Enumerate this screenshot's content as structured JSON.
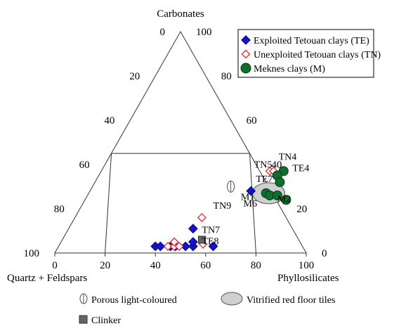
{
  "chart_data": {
    "type": "ternary-scatter",
    "apexes": {
      "top": "Carbonates",
      "left": "Quartz + Feldspars",
      "right": "Phyllosilicates"
    },
    "ticks": {
      "bottom": [
        "0",
        "20",
        "40",
        "60",
        "80",
        "100"
      ],
      "left_edge": [
        "100",
        "80",
        "60",
        "40",
        "20",
        "0"
      ],
      "right_edge": [
        "100",
        "80",
        "60",
        "40",
        "20",
        "0"
      ]
    },
    "region": {
      "carb_max": 45,
      "phyllo_min": 20,
      "phyllo_max": 80
    },
    "legend": [
      {
        "key": "TE",
        "label": "Exploited Tetouan clays (TE)",
        "color": "#1414c8",
        "marker": "diamond"
      },
      {
        "key": "TN",
        "label": "Unexploited Tetouan clays (TN)",
        "color": "#e02828",
        "marker": "open-diamond"
      },
      {
        "key": "M",
        "label": "Meknes clays (M)",
        "color": "#0e6e2e",
        "marker": "circle"
      }
    ],
    "series": [
      {
        "key": "TE",
        "points": [
          {
            "carb": 3,
            "phyllo": 38.5
          },
          {
            "carb": 3,
            "phyllo": 40.5
          },
          {
            "carb": 3,
            "phyllo": 44.5
          },
          {
            "carb": 3,
            "phyllo": 46.5
          },
          {
            "carb": 3,
            "phyllo": 50.5
          },
          {
            "carb": 3,
            "phyllo": 53.5
          },
          {
            "carb": 3,
            "phyllo": 61.5
          },
          {
            "carb": 5,
            "phyllo": 52.5
          },
          {
            "carb": 11,
            "phyllo": 49.5
          },
          {
            "carb": 28,
            "phyllo": 64
          }
        ]
      },
      {
        "key": "TN",
        "points": [
          {
            "carb": 3,
            "phyllo": 43.5
          },
          {
            "carb": 3,
            "phyllo": 46
          },
          {
            "carb": 3,
            "phyllo": 48
          },
          {
            "carb": 5,
            "phyllo": 45
          },
          {
            "carb": 4,
            "phyllo": 57
          },
          {
            "carb": 16,
            "phyllo": 50.5
          },
          {
            "carb": 37,
            "phyllo": 67
          },
          {
            "carb": 37,
            "phyllo": 68.5
          }
        ]
      },
      {
        "key": "M",
        "points": [
          {
            "carb": 37,
            "phyllo": 72.5
          },
          {
            "carb": 35,
            "phyllo": 71
          },
          {
            "carb": 32,
            "phyllo": 73.5
          },
          {
            "carb": 27,
            "phyllo": 70.5
          },
          {
            "carb": 26,
            "phyllo": 72.5
          },
          {
            "carb": 26,
            "phyllo": 75.5
          },
          {
            "carb": 24,
            "phyllo": 80
          }
        ]
      }
    ],
    "ellipse": {
      "carb": 27,
      "phyllo": 71.5
    },
    "special": {
      "porous": {
        "carb": 30,
        "phyllo": 55
      },
      "clinker": {
        "carb": 6,
        "phyllo": 55.5
      }
    },
    "point_labels": [
      {
        "text": "TN4",
        "carb": 42,
        "phyllo": 68
      },
      {
        "text": "TN5",
        "carb": 38.5,
        "phyllo": 60
      },
      {
        "text": "TE4",
        "carb": 37,
        "phyllo": 76
      },
      {
        "text": "TE7",
        "carb": 32,
        "phyllo": 64
      },
      {
        "text": "M1",
        "carb": 24,
        "phyllo": 62
      },
      {
        "text": "M6",
        "carb": 21,
        "phyllo": 64.5
      },
      {
        "text": "M2",
        "carb": 23,
        "phyllo": 77
      },
      {
        "text": "TN9",
        "carb": 20,
        "phyllo": 53
      },
      {
        "text": "TN7",
        "carb": 9,
        "phyllo": 54
      },
      {
        "text": "TE8",
        "carb": 4,
        "phyllo": 56.5
      }
    ],
    "bottom_legend": [
      {
        "key": "porous",
        "label": "Porous light-coloured"
      },
      {
        "key": "vitrified",
        "label": "Vitrified red floor tiles"
      },
      {
        "key": "clinker",
        "label": "Clinker"
      }
    ]
  }
}
